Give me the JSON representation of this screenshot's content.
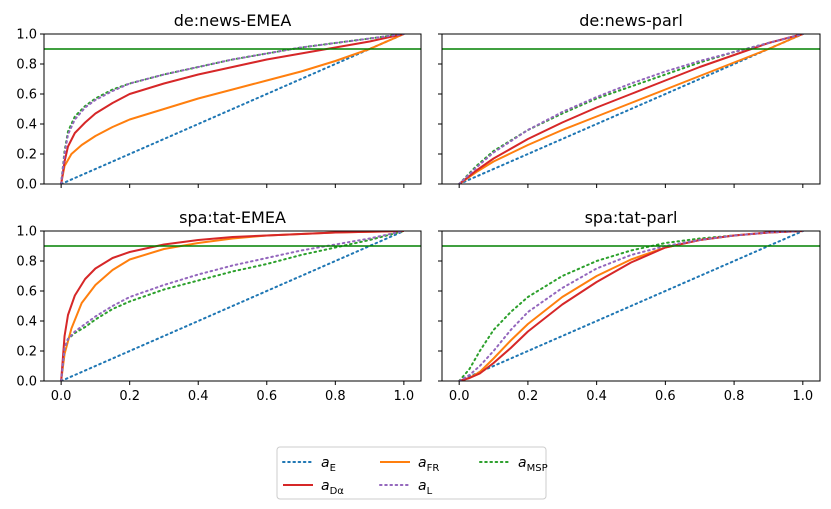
{
  "chart_data": [
    {
      "type": "line",
      "title": "de:news-EMEA",
      "xlim": [
        0,
        1
      ],
      "ylim": [
        0,
        1
      ],
      "hline": 0.9,
      "series": [
        {
          "key": "aE",
          "x": [
            0,
            0.25,
            0.5,
            0.75,
            1.0
          ],
          "y": [
            0,
            0.25,
            0.5,
            0.75,
            1.0
          ]
        },
        {
          "key": "aFR",
          "x": [
            0,
            0.01,
            0.03,
            0.06,
            0.1,
            0.15,
            0.2,
            0.3,
            0.4,
            0.5,
            0.6,
            0.7,
            0.8,
            0.9,
            1.0
          ],
          "y": [
            0,
            0.12,
            0.2,
            0.26,
            0.32,
            0.38,
            0.43,
            0.5,
            0.57,
            0.63,
            0.69,
            0.75,
            0.82,
            0.9,
            1.0
          ]
        },
        {
          "key": "aMSP",
          "x": [
            0,
            0.01,
            0.02,
            0.04,
            0.07,
            0.1,
            0.15,
            0.2,
            0.3,
            0.4,
            0.5,
            0.6,
            0.7,
            0.8,
            0.9,
            1.0
          ],
          "y": [
            0,
            0.22,
            0.35,
            0.45,
            0.52,
            0.57,
            0.63,
            0.67,
            0.73,
            0.78,
            0.83,
            0.87,
            0.91,
            0.94,
            0.97,
            1.0
          ]
        },
        {
          "key": "aDa",
          "x": [
            0,
            0.01,
            0.02,
            0.04,
            0.07,
            0.1,
            0.15,
            0.2,
            0.3,
            0.4,
            0.5,
            0.6,
            0.7,
            0.8,
            0.9,
            1.0
          ],
          "y": [
            0,
            0.15,
            0.25,
            0.34,
            0.41,
            0.47,
            0.54,
            0.6,
            0.67,
            0.73,
            0.78,
            0.83,
            0.87,
            0.91,
            0.95,
            1.0
          ]
        },
        {
          "key": "aL",
          "x": [
            0,
            0.01,
            0.02,
            0.04,
            0.07,
            0.1,
            0.15,
            0.2,
            0.3,
            0.4,
            0.5,
            0.6,
            0.7,
            0.8,
            0.9,
            1.0
          ],
          "y": [
            0,
            0.2,
            0.33,
            0.43,
            0.51,
            0.56,
            0.62,
            0.67,
            0.73,
            0.78,
            0.83,
            0.87,
            0.91,
            0.94,
            0.97,
            1.0
          ]
        }
      ]
    },
    {
      "type": "line",
      "title": "de:news-parl",
      "xlim": [
        0,
        1
      ],
      "ylim": [
        0,
        1
      ],
      "hline": 0.9,
      "series": [
        {
          "key": "aE",
          "x": [
            0,
            0.25,
            0.5,
            0.75,
            1.0
          ],
          "y": [
            0,
            0.25,
            0.5,
            0.75,
            1.0
          ]
        },
        {
          "key": "aFR",
          "x": [
            0,
            0.05,
            0.1,
            0.2,
            0.3,
            0.4,
            0.5,
            0.6,
            0.7,
            0.8,
            0.9,
            1.0
          ],
          "y": [
            0,
            0.08,
            0.15,
            0.26,
            0.36,
            0.45,
            0.54,
            0.63,
            0.72,
            0.81,
            0.9,
            1.0
          ]
        },
        {
          "key": "aMSP",
          "x": [
            0,
            0.05,
            0.1,
            0.2,
            0.3,
            0.4,
            0.5,
            0.6,
            0.7,
            0.8,
            0.9,
            1.0
          ],
          "y": [
            0,
            0.12,
            0.22,
            0.36,
            0.47,
            0.57,
            0.65,
            0.73,
            0.81,
            0.88,
            0.94,
            1.0
          ]
        },
        {
          "key": "aDa",
          "x": [
            0,
            0.05,
            0.1,
            0.2,
            0.3,
            0.4,
            0.5,
            0.6,
            0.7,
            0.8,
            0.9,
            1.0
          ],
          "y": [
            0,
            0.09,
            0.17,
            0.3,
            0.41,
            0.51,
            0.6,
            0.69,
            0.78,
            0.86,
            0.94,
            1.0
          ]
        },
        {
          "key": "aL",
          "x": [
            0,
            0.05,
            0.1,
            0.2,
            0.3,
            0.4,
            0.5,
            0.6,
            0.7,
            0.8,
            0.9,
            1.0
          ],
          "y": [
            0,
            0.11,
            0.21,
            0.36,
            0.48,
            0.58,
            0.67,
            0.75,
            0.82,
            0.88,
            0.94,
            1.0
          ]
        }
      ]
    },
    {
      "type": "line",
      "title": "spa:tat-EMEA",
      "xlim": [
        0,
        1
      ],
      "ylim": [
        0,
        1
      ],
      "hline": 0.9,
      "series": [
        {
          "key": "aE",
          "x": [
            0,
            0.25,
            0.5,
            0.75,
            1.0
          ],
          "y": [
            0,
            0.25,
            0.5,
            0.75,
            1.0
          ]
        },
        {
          "key": "aFR",
          "x": [
            0,
            0.01,
            0.03,
            0.06,
            0.1,
            0.15,
            0.2,
            0.3,
            0.4,
            0.5,
            0.6,
            0.7,
            0.8,
            0.9,
            1.0
          ],
          "y": [
            0,
            0.18,
            0.35,
            0.52,
            0.64,
            0.74,
            0.81,
            0.88,
            0.92,
            0.95,
            0.97,
            0.98,
            0.99,
            0.995,
            1.0
          ]
        },
        {
          "key": "aMSP",
          "x": [
            0,
            0.01,
            0.02,
            0.04,
            0.07,
            0.1,
            0.15,
            0.2,
            0.3,
            0.4,
            0.5,
            0.6,
            0.7,
            0.8,
            0.9,
            1.0
          ],
          "y": [
            0,
            0.22,
            0.28,
            0.32,
            0.36,
            0.41,
            0.48,
            0.53,
            0.61,
            0.67,
            0.73,
            0.78,
            0.84,
            0.89,
            0.94,
            1.0
          ]
        },
        {
          "key": "aDa",
          "x": [
            0,
            0.01,
            0.02,
            0.04,
            0.07,
            0.1,
            0.15,
            0.2,
            0.3,
            0.4,
            0.5,
            0.6,
            0.7,
            0.8,
            0.9,
            1.0
          ],
          "y": [
            0,
            0.3,
            0.44,
            0.57,
            0.68,
            0.75,
            0.82,
            0.86,
            0.91,
            0.94,
            0.96,
            0.97,
            0.98,
            0.99,
            0.995,
            1.0
          ]
        },
        {
          "key": "aL",
          "x": [
            0,
            0.01,
            0.02,
            0.04,
            0.07,
            0.1,
            0.15,
            0.2,
            0.3,
            0.4,
            0.5,
            0.6,
            0.7,
            0.8,
            0.9,
            1.0
          ],
          "y": [
            0,
            0.22,
            0.28,
            0.33,
            0.38,
            0.43,
            0.5,
            0.56,
            0.64,
            0.71,
            0.77,
            0.82,
            0.87,
            0.91,
            0.95,
            1.0
          ]
        }
      ]
    },
    {
      "type": "line",
      "title": "spa:tat-parl",
      "xlim": [
        0,
        1
      ],
      "ylim": [
        0,
        1
      ],
      "hline": 0.9,
      "series": [
        {
          "key": "aE",
          "x": [
            0,
            0.25,
            0.5,
            0.75,
            1.0
          ],
          "y": [
            0,
            0.25,
            0.5,
            0.75,
            1.0
          ]
        },
        {
          "key": "aFR",
          "x": [
            0,
            0.03,
            0.06,
            0.1,
            0.15,
            0.2,
            0.3,
            0.4,
            0.5,
            0.6,
            0.7,
            0.8,
            0.9,
            1.0
          ],
          "y": [
            0,
            0.02,
            0.06,
            0.15,
            0.27,
            0.38,
            0.56,
            0.7,
            0.81,
            0.89,
            0.94,
            0.97,
            0.99,
            1.0
          ]
        },
        {
          "key": "aMSP",
          "x": [
            0,
            0.03,
            0.06,
            0.1,
            0.15,
            0.2,
            0.3,
            0.4,
            0.5,
            0.6,
            0.7,
            0.8,
            0.9,
            1.0
          ],
          "y": [
            0,
            0.08,
            0.2,
            0.34,
            0.46,
            0.56,
            0.7,
            0.8,
            0.87,
            0.92,
            0.95,
            0.97,
            0.99,
            1.0
          ]
        },
        {
          "key": "aDa",
          "x": [
            0,
            0.03,
            0.06,
            0.1,
            0.15,
            0.2,
            0.3,
            0.4,
            0.5,
            0.6,
            0.7,
            0.8,
            0.9,
            1.0
          ],
          "y": [
            0,
            0.02,
            0.05,
            0.12,
            0.22,
            0.33,
            0.51,
            0.66,
            0.79,
            0.89,
            0.94,
            0.97,
            0.99,
            1.0
          ]
        },
        {
          "key": "aL",
          "x": [
            0,
            0.03,
            0.06,
            0.1,
            0.15,
            0.2,
            0.3,
            0.4,
            0.5,
            0.6,
            0.7,
            0.8,
            0.9,
            1.0
          ],
          "y": [
            0,
            0.04,
            0.1,
            0.2,
            0.34,
            0.46,
            0.62,
            0.75,
            0.84,
            0.9,
            0.94,
            0.97,
            0.99,
            1.0
          ]
        }
      ]
    }
  ],
  "axes": {
    "x_ticks": [
      "0.0",
      "0.2",
      "0.4",
      "0.6",
      "0.8",
      "1.0"
    ],
    "y_ticks": [
      "0.0",
      "0.2",
      "0.4",
      "0.6",
      "0.8",
      "1.0"
    ]
  },
  "styles": {
    "aE": {
      "color": "#1f77b4",
      "dash": "dotted"
    },
    "aFR": {
      "color": "#ff7f0e",
      "dash": "solid"
    },
    "aMSP": {
      "color": "#2ca02c",
      "dash": "dotted"
    },
    "aDa": {
      "color": "#d62728",
      "dash": "solid"
    },
    "aL": {
      "color": "#9467bd",
      "dash": "dotted"
    },
    "hline": {
      "color": "#008000"
    }
  },
  "legend": {
    "placement": "bottom-center",
    "entries": [
      {
        "key": "aE",
        "base": "a",
        "sub": "E"
      },
      {
        "key": "aFR",
        "base": "a",
        "sub": "FR"
      },
      {
        "key": "aMSP",
        "base": "a",
        "sub": "MSP"
      },
      {
        "key": "aDa",
        "base": "a",
        "sub": "Dα"
      },
      {
        "key": "aL",
        "base": "a",
        "sub": "L"
      }
    ]
  }
}
